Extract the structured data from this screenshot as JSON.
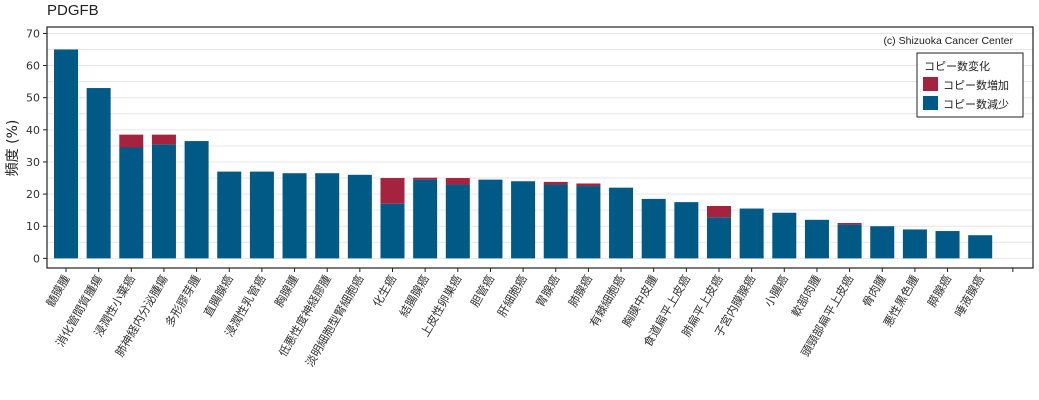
{
  "chart_data": {
    "type": "bar",
    "stacked": true,
    "title": "PDGFB",
    "ylabel": "頻度 (%)",
    "xlabel": "",
    "ylim": [
      -3,
      72
    ],
    "yticks": [
      0,
      10,
      20,
      30,
      40,
      50,
      60,
      70
    ],
    "grid": true,
    "credit": "(c) Shizuoka Cancer Center",
    "legend": {
      "title": "コピー数変化",
      "position": "top-right",
      "entries": [
        "コピー数増加",
        "コピー数減少"
      ]
    },
    "categories": [
      "髄膜腫",
      "消化管間質腫瘍",
      "浸潤性小葉癌",
      "肺神経内分泌腫瘍",
      "多形膠芽腫",
      "直腸腺癌",
      "浸潤性乳管癌",
      "胸腺腫",
      "低悪性度神経膠腫",
      "淡明細胞型腎細胞癌",
      "化生癌",
      "結腸腺癌",
      "上皮性卵巣癌",
      "胆管癌",
      "肝細胞癌",
      "胃腺癌",
      "肺腺癌",
      "有棘細胞癌",
      "胸膜中皮腫",
      "食道扁平上皮癌",
      "肺扁平上皮癌",
      "子宮内膜腺癌",
      "小腸癌",
      "軟部肉腫",
      "頭頸部扁平上皮癌",
      "骨肉腫",
      "悪性黒色腫",
      "膵腺癌",
      "唾液腺癌"
    ],
    "series": [
      {
        "name": "コピー数減少",
        "color": "#005a85",
        "values": [
          65,
          53,
          34.5,
          35.5,
          36.5,
          27,
          27,
          26.5,
          26.5,
          26,
          17,
          24.5,
          23,
          24.5,
          24,
          23,
          22.5,
          22,
          18.5,
          17.5,
          12.8,
          15.5,
          14.2,
          12,
          10.5,
          10,
          9,
          8.5,
          7.2
        ]
      },
      {
        "name": "コピー数増加",
        "color": "#a5233f",
        "values": [
          0,
          0,
          4,
          3,
          0,
          0,
          0,
          0,
          0,
          0,
          8,
          0.6,
          2,
          0,
          0,
          0.8,
          0.8,
          0,
          0,
          0,
          3.5,
          0,
          0,
          0,
          0.5,
          0,
          0,
          0,
          0
        ]
      }
    ]
  }
}
